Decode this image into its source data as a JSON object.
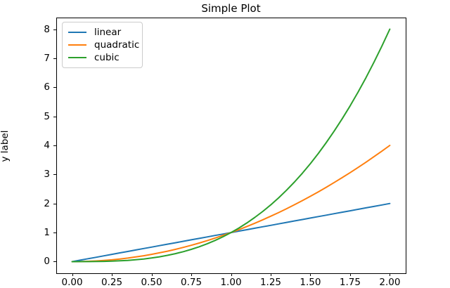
{
  "figure": {
    "title": "Simple Plot",
    "background": "#ffffff"
  },
  "axes": {
    "ylabel": "y label",
    "spine_color": "#000000",
    "tick_color": "#000000"
  },
  "legend": {
    "border_color": "#cccccc",
    "position": "upper left",
    "items": [
      {
        "label": "linear",
        "color": "#1f77b4"
      },
      {
        "label": "quadratic",
        "color": "#ff7f0e"
      },
      {
        "label": "cubic",
        "color": "#2ca02c"
      }
    ]
  },
  "chart_data": {
    "type": "line",
    "title": "Simple Plot",
    "xlabel": "",
    "ylabel": "y label",
    "xlim": [
      -0.1,
      2.1
    ],
    "ylim": [
      -0.4,
      8.4
    ],
    "grid": false,
    "legend_position": "upper left",
    "xtick_values": [
      0,
      0.25,
      0.5,
      0.75,
      1.0,
      1.25,
      1.5,
      1.75,
      2.0
    ],
    "xtick_labels": [
      "0.00",
      "0.25",
      "0.50",
      "0.75",
      "1.00",
      "1.25",
      "1.50",
      "1.75",
      "2.00"
    ],
    "ytick_values": [
      0,
      1,
      2,
      3,
      4,
      5,
      6,
      7,
      8
    ],
    "ytick_labels": [
      "0",
      "1",
      "2",
      "3",
      "4",
      "5",
      "6",
      "7",
      "8"
    ],
    "x": [
      0,
      0.05,
      0.1,
      0.15,
      0.2,
      0.25,
      0.3,
      0.35,
      0.4,
      0.45,
      0.5,
      0.55,
      0.6,
      0.65,
      0.7,
      0.75,
      0.8,
      0.85,
      0.9,
      0.95,
      1,
      1.05,
      1.1,
      1.15,
      1.2,
      1.25,
      1.3,
      1.35,
      1.4,
      1.45,
      1.5,
      1.55,
      1.6,
      1.65,
      1.7,
      1.75,
      1.8,
      1.85,
      1.9,
      1.95,
      2
    ],
    "series": [
      {
        "name": "linear",
        "color": "#1f77b4",
        "values": [
          0,
          0.05,
          0.1,
          0.15,
          0.2,
          0.25,
          0.3,
          0.35,
          0.4,
          0.45,
          0.5,
          0.55,
          0.6,
          0.65,
          0.7,
          0.75,
          0.8,
          0.85,
          0.9,
          0.95,
          1,
          1.05,
          1.1,
          1.15,
          1.2,
          1.25,
          1.3,
          1.35,
          1.4,
          1.45,
          1.5,
          1.55,
          1.6,
          1.65,
          1.7,
          1.75,
          1.8,
          1.85,
          1.9,
          1.95,
          2
        ]
      },
      {
        "name": "quadratic",
        "color": "#ff7f0e",
        "values": [
          0,
          0.0025,
          0.01,
          0.0225,
          0.04,
          0.0625,
          0.09,
          0.1225,
          0.16,
          0.2025,
          0.25,
          0.3025,
          0.36,
          0.4225,
          0.49,
          0.5625,
          0.64,
          0.7225,
          0.81,
          0.9025,
          1,
          1.1025,
          1.21,
          1.3225,
          1.44,
          1.5625,
          1.69,
          1.8225,
          1.96,
          2.1025,
          2.25,
          2.4025,
          2.56,
          2.7225,
          2.89,
          3.0625,
          3.24,
          3.4225,
          3.61,
          3.8025,
          4
        ]
      },
      {
        "name": "cubic",
        "color": "#2ca02c",
        "values": [
          0,
          0.000125,
          0.001,
          0.003375,
          0.008,
          0.015625,
          0.027,
          0.042875,
          0.064,
          0.091125,
          0.125,
          0.166375,
          0.216,
          0.274625,
          0.343,
          0.421875,
          0.512,
          0.614125,
          0.729,
          0.857375,
          1,
          1.157625,
          1.331,
          1.520875,
          1.728,
          1.953125,
          2.197,
          2.460375,
          2.744,
          3.048625,
          3.375,
          3.723875,
          4.096,
          4.492125,
          4.913,
          5.359375,
          5.832,
          6.331625,
          6.859,
          7.414875,
          8
        ]
      }
    ]
  }
}
